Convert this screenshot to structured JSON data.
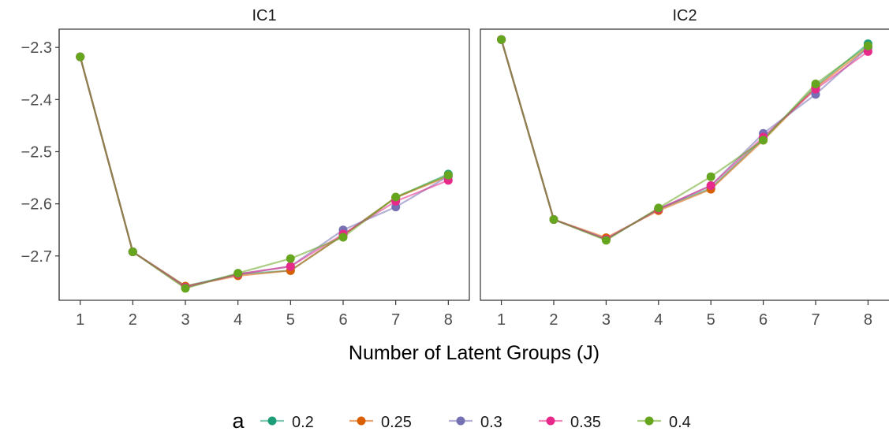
{
  "chart_data": {
    "type": "line",
    "facets": [
      "IC1",
      "IC2"
    ],
    "x": [
      1,
      2,
      3,
      4,
      5,
      6,
      7,
      8
    ],
    "xlabel": "Number of Latent Groups (J)",
    "ylabel": "",
    "yticks": [
      -2.3,
      -2.4,
      -2.5,
      -2.6,
      -2.7
    ],
    "ytick_labels": [
      "−2.3",
      "−2.4",
      "−2.5",
      "−2.6",
      "−2.7"
    ],
    "ylim": [
      -2.785,
      -2.265
    ],
    "xlim": [
      0.6,
      8.4
    ],
    "legend_title": "a",
    "legend_position": "bottom",
    "series": [
      {
        "name": "0.2",
        "color": "#1B9E77",
        "IC1": [
          -2.318,
          -2.692,
          -2.758,
          -2.735,
          -2.728,
          -2.66,
          -2.588,
          -2.543
        ],
        "IC2": [
          -2.285,
          -2.63,
          -2.668,
          -2.61,
          -2.57,
          -2.475,
          -2.375,
          -2.293
        ]
      },
      {
        "name": "0.25",
        "color": "#D95F02",
        "IC1": [
          -2.318,
          -2.692,
          -2.758,
          -2.738,
          -2.728,
          -2.66,
          -2.588,
          -2.547
        ],
        "IC2": [
          -2.285,
          -2.63,
          -2.665,
          -2.613,
          -2.572,
          -2.478,
          -2.377,
          -2.3
        ]
      },
      {
        "name": "0.3",
        "color": "#7570B3",
        "IC1": [
          -2.318,
          -2.692,
          -2.76,
          -2.735,
          -2.72,
          -2.65,
          -2.606,
          -2.547
        ],
        "IC2": [
          -2.285,
          -2.63,
          -2.668,
          -2.61,
          -2.565,
          -2.465,
          -2.39,
          -2.3
        ]
      },
      {
        "name": "0.35",
        "color": "#E7298A",
        "IC1": [
          -2.318,
          -2.692,
          -2.76,
          -2.735,
          -2.72,
          -2.658,
          -2.595,
          -2.555
        ],
        "IC2": [
          -2.285,
          -2.63,
          -2.668,
          -2.61,
          -2.565,
          -2.472,
          -2.38,
          -2.308
        ]
      },
      {
        "name": "0.4",
        "color": "#66A61E",
        "IC1": [
          -2.318,
          -2.692,
          -2.762,
          -2.733,
          -2.705,
          -2.664,
          -2.587,
          -2.545
        ],
        "IC2": [
          -2.285,
          -2.63,
          -2.67,
          -2.608,
          -2.548,
          -2.478,
          -2.37,
          -2.297
        ]
      }
    ]
  }
}
